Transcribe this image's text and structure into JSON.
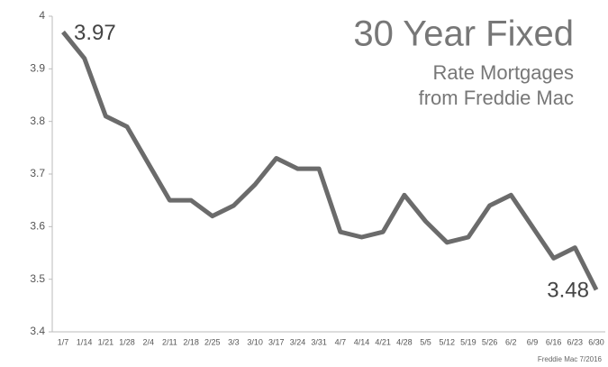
{
  "chart_data": {
    "type": "line",
    "title": "30 Year Fixed",
    "subtitle": [
      "Rate Mortgages",
      "from Freddie Mac"
    ],
    "source": "Freddie Mac 7/2016",
    "categories": [
      "1/7",
      "1/14",
      "1/21",
      "1/28",
      "2/4",
      "2/11",
      "2/18",
      "2/25",
      "3/3",
      "3/10",
      "3/17",
      "3/24",
      "3/31",
      "4/7",
      "4/14",
      "4/21",
      "4/28",
      "5/5",
      "5/12",
      "5/19",
      "5/26",
      "6/2",
      "6/9",
      "6/16",
      "6/23",
      "6/30"
    ],
    "series": [
      {
        "color": "#6b6b6b",
        "values": [
          3.97,
          3.92,
          3.81,
          3.79,
          3.72,
          3.65,
          3.65,
          3.62,
          3.64,
          3.68,
          3.73,
          3.71,
          3.71,
          3.59,
          3.58,
          3.59,
          3.66,
          3.61,
          3.57,
          3.58,
          3.64,
          3.66,
          3.6,
          3.54,
          3.56,
          3.48
        ]
      }
    ],
    "ylim": [
      3.4,
      4
    ],
    "yticks": [
      3.4,
      3.5,
      3.6,
      3.7,
      3.8,
      3.9,
      4
    ],
    "grid": false
  }
}
